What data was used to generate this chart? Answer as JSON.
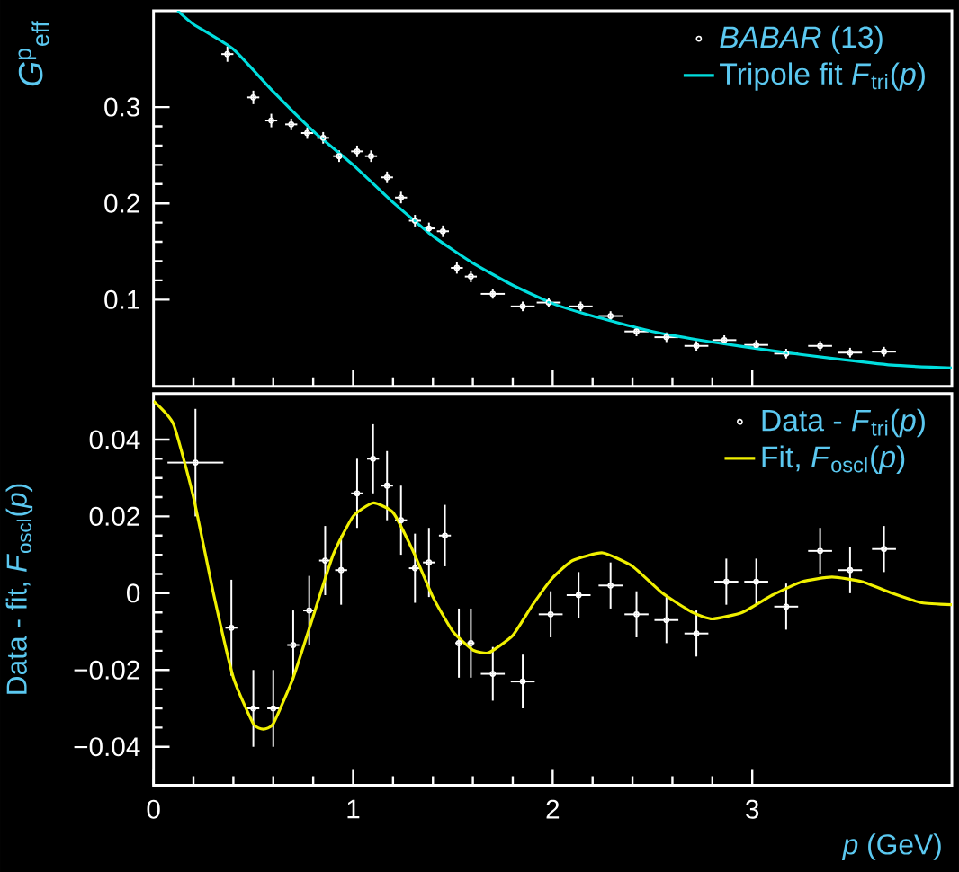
{
  "chart_data": [
    {
      "type": "scatter",
      "ylabel": "*G*$^{p}$$_{eff}$",
      "xlim": [
        0,
        4
      ],
      "ylim": [
        0.01,
        0.4
      ],
      "xticks": [
        0,
        1,
        2,
        3
      ],
      "yticks": [
        0.1,
        0.2,
        0.3
      ],
      "tick_labels": "y",
      "grid": false,
      "legend": "top right",
      "series": [
        {
          "name": "*BABAR* (13)",
          "color": "#ffffff",
          "marker": "circle",
          "x": [
            0.37,
            0.5,
            0.59,
            0.69,
            0.77,
            0.85,
            0.93,
            1.02,
            1.09,
            1.17,
            1.24,
            1.31,
            1.38,
            1.45,
            1.52,
            1.59,
            1.7,
            1.85,
            1.98,
            2.14,
            2.29,
            2.42,
            2.57,
            2.72,
            2.86,
            3.02,
            3.17,
            3.34,
            3.49,
            3.66
          ],
          "values": [
            0.355,
            0.31,
            0.286,
            0.282,
            0.273,
            0.268,
            0.249,
            0.254,
            0.249,
            0.227,
            0.206,
            0.182,
            0.174,
            0.171,
            0.133,
            0.124,
            0.106,
            0.093,
            0.097,
            0.093,
            0.083,
            0.067,
            0.061,
            0.052,
            0.058,
            0.053,
            0.044,
            0.052,
            0.045,
            0.046
          ],
          "errors": [
            0.008,
            0.007,
            0.007,
            0.006,
            0.006,
            0.006,
            0.006,
            0.006,
            0.006,
            0.006,
            0.006,
            0.006,
            0.006,
            0.006,
            0.006,
            0.006,
            0.005,
            0.005,
            0.005,
            0.005,
            0.005,
            0.005,
            0.005,
            0.005,
            0.005,
            0.005,
            0.005,
            0.005,
            0.005,
            0.005
          ],
          "xerrors": [
            0.03,
            0.03,
            0.03,
            0.03,
            0.03,
            0.03,
            0.03,
            0.03,
            0.03,
            0.03,
            0.03,
            0.03,
            0.03,
            0.03,
            0.03,
            0.03,
            0.06,
            0.06,
            0.06,
            0.06,
            0.06,
            0.06,
            0.06,
            0.06,
            0.06,
            0.06,
            0.06,
            0.06,
            0.06,
            0.06
          ]
        },
        {
          "type": "line",
          "name": "Tripole fit *F*$_{tri}$(*p*)",
          "color": "#00dede",
          "x": [
            0.12,
            0.2,
            0.4,
            0.6,
            0.8,
            1.0,
            1.2,
            1.4,
            1.6,
            1.8,
            2.0,
            2.2,
            2.5,
            2.8,
            3.1,
            3.4,
            3.7,
            4.0
          ],
          "values": [
            0.4,
            0.386,
            0.36,
            0.316,
            0.275,
            0.24,
            0.201,
            0.166,
            0.138,
            0.115,
            0.096,
            0.083,
            0.067,
            0.056,
            0.047,
            0.039,
            0.032,
            0.029
          ]
        }
      ]
    },
    {
      "type": "scatter",
      "xlabel": "*p* (GeV)",
      "ylabel": "Data - fit, *F*$_{oscl}$(*p*)",
      "xlim": [
        0,
        4
      ],
      "ylim": [
        -0.05,
        0.052
      ],
      "xticks": [
        0,
        1,
        2,
        3
      ],
      "yticks": [
        {
          "value": -0.04,
          "label": "−0.04"
        },
        {
          "value": -0.02,
          "label": "−0.02"
        },
        0,
        0.02,
        0.04
      ],
      "grid": false,
      "legend": "top right",
      "series": [
        {
          "name": "Data - *F*$_{tri}$(*p*)",
          "color": "#ffffff",
          "marker": "circle",
          "x": [
            0.21,
            0.39,
            0.5,
            0.6,
            0.7,
            0.78,
            0.86,
            0.94,
            1.02,
            1.1,
            1.17,
            1.24,
            1.31,
            1.38,
            1.46,
            1.53,
            1.59,
            1.7,
            1.85,
            1.99,
            2.13,
            2.29,
            2.42,
            2.57,
            2.72,
            2.87,
            3.02,
            3.17,
            3.34,
            3.49,
            3.66
          ],
          "values": [
            0.034,
            -0.009,
            -0.03,
            -0.03,
            -0.0135,
            -0.0045,
            0.0085,
            0.006,
            0.026,
            0.035,
            0.028,
            0.019,
            0.0065,
            0.008,
            0.015,
            -0.013,
            -0.013,
            -0.021,
            -0.023,
            -0.0055,
            -0.0005,
            0.002,
            -0.0055,
            -0.007,
            -0.0105,
            0.003,
            0.003,
            -0.0035,
            0.011,
            0.006,
            0.0115
          ],
          "errors": [
            0.014,
            0.0125,
            0.01,
            0.01,
            0.009,
            0.009,
            0.009,
            0.009,
            0.009,
            0.009,
            0.009,
            0.009,
            0.009,
            0.009,
            0.008,
            0.009,
            0.009,
            0.007,
            0.007,
            0.006,
            0.006,
            0.006,
            0.006,
            0.006,
            0.006,
            0.006,
            0.006,
            0.006,
            0.006,
            0.006,
            0.006
          ],
          "xerrors": [
            0.14,
            0.03,
            0.03,
            0.03,
            0.03,
            0.03,
            0.03,
            0.03,
            0.03,
            0.03,
            0.03,
            0.03,
            0.03,
            0.03,
            0.03,
            0.018,
            0.018,
            0.06,
            0.06,
            0.06,
            0.06,
            0.06,
            0.06,
            0.06,
            0.06,
            0.06,
            0.06,
            0.06,
            0.06,
            0.06,
            0.06
          ]
        },
        {
          "type": "line",
          "name": "Fit, *F*$_{oscl}$(*p*)",
          "color": "#f0f000",
          "x": [
            0,
            0.1,
            0.2,
            0.3,
            0.4,
            0.5,
            0.55,
            0.6,
            0.7,
            0.8,
            0.9,
            1.0,
            1.1,
            1.2,
            1.3,
            1.4,
            1.5,
            1.6,
            1.68,
            1.8,
            1.9,
            2.0,
            2.1,
            2.25,
            2.4,
            2.55,
            2.7,
            2.8,
            2.95,
            3.1,
            3.25,
            3.4,
            3.55,
            3.7,
            3.85,
            4.0
          ],
          "values": [
            0.05,
            0.044,
            0.025,
            0.0,
            -0.022,
            -0.034,
            -0.0354,
            -0.034,
            -0.022,
            -0.006,
            0.01,
            0.02,
            0.0235,
            0.021,
            0.011,
            -0.001,
            -0.01,
            -0.0148,
            -0.0155,
            -0.011,
            -0.003,
            0.004,
            0.0085,
            0.0105,
            0.007,
            0.0,
            -0.005,
            -0.0067,
            -0.005,
            -0.0005,
            0.003,
            0.0042,
            0.003,
            0.0,
            -0.0025,
            -0.003
          ]
        }
      ]
    }
  ]
}
